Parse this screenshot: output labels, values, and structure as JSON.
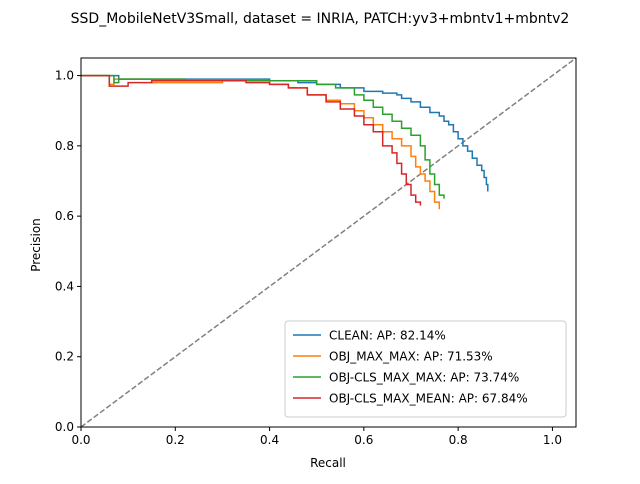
{
  "chart_data": {
    "type": "line",
    "title": "SSD_MobileNetV3Small, dataset = INRIA, PATCH:yv3+mbntv1+mbntv2",
    "xlabel": "Recall",
    "ylabel": "Precision",
    "xlim": [
      0,
      1.05
    ],
    "ylim": [
      0,
      1.05
    ],
    "xticks": [
      0.0,
      0.2,
      0.4,
      0.6,
      0.8,
      1.0
    ],
    "yticks": [
      0.0,
      0.2,
      0.4,
      0.6,
      0.8,
      1.0
    ],
    "xtick_labels": [
      "0.0",
      "0.2",
      "0.4",
      "0.6",
      "0.8",
      "1.0"
    ],
    "ytick_labels": [
      "0.0",
      "0.2",
      "0.4",
      "0.6",
      "0.8",
      "1.0"
    ],
    "grid": false,
    "legend_position": "lower-right",
    "series": [
      {
        "name": "CLEAN: AP: 82.14%",
        "color": "#1f77b4",
        "x": [
          0.0,
          0.06,
          0.08,
          0.08,
          0.2,
          0.3,
          0.4,
          0.46,
          0.5,
          0.55,
          0.6,
          0.64,
          0.67,
          0.68,
          0.7,
          0.72,
          0.74,
          0.76,
          0.77,
          0.78,
          0.79,
          0.8,
          0.81,
          0.82,
          0.83,
          0.84,
          0.85,
          0.855,
          0.86,
          0.863
        ],
        "y": [
          1.0,
          1.0,
          1.0,
          0.99,
          0.99,
          0.99,
          0.985,
          0.98,
          0.975,
          0.965,
          0.955,
          0.95,
          0.945,
          0.935,
          0.925,
          0.91,
          0.895,
          0.885,
          0.87,
          0.86,
          0.84,
          0.82,
          0.8,
          0.785,
          0.765,
          0.745,
          0.73,
          0.71,
          0.69,
          0.67
        ]
      },
      {
        "name": "OBJ_MAX_MAX: AP: 71.53%",
        "color": "#ff7f0e",
        "x": [
          0.0,
          0.06,
          0.06,
          0.07,
          0.07,
          0.15,
          0.15,
          0.3,
          0.4,
          0.44,
          0.48,
          0.52,
          0.55,
          0.58,
          0.6,
          0.62,
          0.64,
          0.66,
          0.68,
          0.7,
          0.71,
          0.72,
          0.73,
          0.74,
          0.75,
          0.76
        ],
        "y": [
          1.0,
          1.0,
          0.975,
          0.975,
          0.99,
          0.99,
          0.98,
          0.985,
          0.975,
          0.965,
          0.945,
          0.93,
          0.92,
          0.9,
          0.88,
          0.86,
          0.84,
          0.82,
          0.8,
          0.77,
          0.74,
          0.72,
          0.7,
          0.67,
          0.64,
          0.62
        ]
      },
      {
        "name": "OBJ-CLS_MAX_MAX: AP: 73.74%",
        "color": "#2ca02c",
        "x": [
          0.0,
          0.07,
          0.07,
          0.08,
          0.08,
          0.22,
          0.22,
          0.4,
          0.5,
          0.54,
          0.58,
          0.6,
          0.62,
          0.64,
          0.66,
          0.68,
          0.7,
          0.72,
          0.73,
          0.74,
          0.75,
          0.76,
          0.77
        ],
        "y": [
          1.0,
          1.0,
          0.98,
          0.98,
          0.99,
          0.99,
          0.985,
          0.985,
          0.975,
          0.965,
          0.945,
          0.93,
          0.91,
          0.89,
          0.87,
          0.85,
          0.83,
          0.8,
          0.76,
          0.72,
          0.69,
          0.66,
          0.65
        ]
      },
      {
        "name": "OBJ-CLS_MAX_MEAN: AP: 67.84%",
        "color": "#d62728",
        "x": [
          0.0,
          0.06,
          0.06,
          0.1,
          0.15,
          0.2,
          0.25,
          0.3,
          0.35,
          0.4,
          0.44,
          0.48,
          0.52,
          0.55,
          0.58,
          0.6,
          0.62,
          0.64,
          0.66,
          0.67,
          0.68,
          0.69,
          0.7,
          0.71,
          0.72
        ],
        "y": [
          1.0,
          1.0,
          0.97,
          0.98,
          0.985,
          0.985,
          0.985,
          0.985,
          0.98,
          0.975,
          0.965,
          0.945,
          0.925,
          0.905,
          0.885,
          0.86,
          0.84,
          0.8,
          0.78,
          0.75,
          0.72,
          0.69,
          0.66,
          0.64,
          0.63
        ]
      }
    ],
    "reference_line": {
      "x": [
        0,
        1.05
      ],
      "y": [
        0,
        1.05
      ],
      "color": "#808080",
      "style": "dashed"
    }
  }
}
